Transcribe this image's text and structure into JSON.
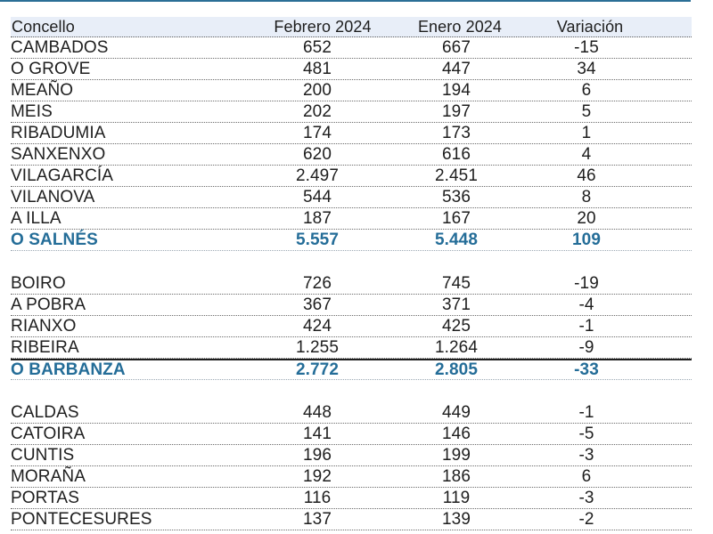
{
  "header": {
    "concello": "Concello",
    "febrero": "Febrero 2024",
    "enero": "Enero 2024",
    "variacion": "Variación"
  },
  "groups": [
    {
      "rows": [
        {
          "name": "CAMBADOS",
          "feb": "652",
          "jan": "667",
          "var": "-15"
        },
        {
          "name": "O GROVE",
          "feb": "481",
          "jan": "447",
          "var": "34"
        },
        {
          "name": "MEAÑO",
          "feb": "200",
          "jan": "194",
          "var": "6"
        },
        {
          "name": "MEIS",
          "feb": "202",
          "jan": "197",
          "var": "5"
        },
        {
          "name": "RIBADUMIA",
          "feb": "174",
          "jan": "173",
          "var": "1"
        },
        {
          "name": "SANXENXO",
          "feb": "620",
          "jan": "616",
          "var": "4"
        },
        {
          "name": "VILAGARCÍA",
          "feb": "2.497",
          "jan": "2.451",
          "var": "46"
        },
        {
          "name": "VILANOVA",
          "feb": "544",
          "jan": "536",
          "var": "8"
        },
        {
          "name": "A ILLA",
          "feb": "187",
          "jan": "167",
          "var": "20"
        }
      ],
      "total": {
        "name": "O SALNÉS",
        "feb": "5.557",
        "jan": "5.448",
        "var": "109"
      }
    },
    {
      "rows": [
        {
          "name": "BOIRO",
          "feb": "726",
          "jan": "745",
          "var": "-19"
        },
        {
          "name": "A POBRA",
          "feb": "367",
          "jan": "371",
          "var": "-4"
        },
        {
          "name": "RIANXO",
          "feb": "424",
          "jan": "425",
          "var": "-1"
        },
        {
          "name": "RIBEIRA",
          "feb": "1.255",
          "jan": "1.264",
          "var": "-9"
        }
      ],
      "total": {
        "name": "O BARBANZA",
        "feb": "2.772",
        "jan": "2.805",
        "var": "-33"
      }
    },
    {
      "rows": [
        {
          "name": "CALDAS",
          "feb": "448",
          "jan": "449",
          "var": "-1"
        },
        {
          "name": "CATOIRA",
          "feb": "141",
          "jan": "146",
          "var": "-5"
        },
        {
          "name": "CUNTIS",
          "feb": "196",
          "jan": "199",
          "var": "-3"
        },
        {
          "name": "MORAÑA",
          "feb": "192",
          "jan": "186",
          "var": "6"
        },
        {
          "name": "PORTAS",
          "feb": "116",
          "jan": "119",
          "var": "-3"
        },
        {
          "name": "PONTECESURES",
          "feb": "137",
          "jan": "139",
          "var": "-2"
        }
      ]
    }
  ],
  "colors": {
    "accent": "#246d98",
    "header_bg": "#e8eef8",
    "text": "#1e1e1e"
  }
}
